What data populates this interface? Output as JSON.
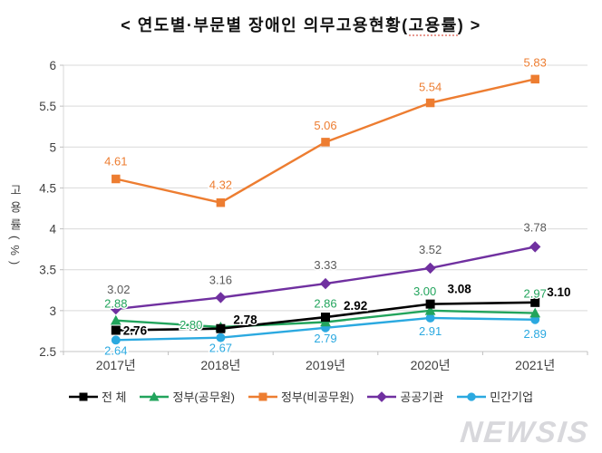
{
  "title": {
    "prefix": "< 연도별·부문별 장애인 의무고용현황(",
    "highlight": "고용률",
    "suffix": ") >"
  },
  "watermark": "NEWSIS",
  "colors": {
    "grid": "#D9D9D9",
    "axis": "#C6C6C6",
    "tick": "#BFBFBF",
    "axis_text": "#404040"
  },
  "chart_data": {
    "type": "line",
    "title": "< 연도별·부문별 장애인 의무고용현황(고용률) >",
    "categories": [
      "2017년",
      "2018년",
      "2019년",
      "2020년",
      "2021년"
    ],
    "xlabel": "",
    "ylabel": "고용률(%)",
    "ylim": [
      2.5,
      6
    ],
    "yticks": [
      2.5,
      3,
      3.5,
      4,
      4.5,
      5,
      5.5,
      6
    ],
    "grid": true,
    "legend_position": "bottom",
    "series": [
      {
        "key": "total",
        "name": "전 체",
        "color": "#000000",
        "marker": "square",
        "label_color": "#000000",
        "label_bold": true,
        "z": 5,
        "values": [
          2.76,
          2.78,
          2.92,
          3.08,
          3.1
        ],
        "label_offsets": [
          [
            8,
            5,
            "start"
          ],
          [
            14,
            -5,
            "start"
          ],
          [
            20,
            -8,
            "start"
          ],
          [
            32,
            -12,
            "middle"
          ],
          [
            13,
            -7,
            "start"
          ]
        ]
      },
      {
        "key": "government-civil-servants",
        "name": "정부(공무원)",
        "color": "#22A45C",
        "marker": "triangle",
        "label_color": "#22A45C",
        "label_bold": false,
        "z": 4,
        "values": [
          2.88,
          2.8,
          2.86,
          3.0,
          2.97
        ],
        "label_offsets": [
          [
            0,
            -14,
            "middle"
          ],
          [
            -20,
            2,
            "end"
          ],
          [
            0,
            -16,
            "middle"
          ],
          [
            -6,
            -17,
            "middle"
          ],
          [
            0,
            -17,
            "middle"
          ]
        ]
      },
      {
        "key": "government-non-civil-servants",
        "name": "정부(비공무원)",
        "color": "#ED7D31",
        "marker": "square",
        "label_color": "#ED7D31",
        "label_bold": false,
        "z": 1,
        "values": [
          4.61,
          4.32,
          5.06,
          5.54,
          5.83
        ],
        "label_offsets": [
          [
            0,
            -15,
            "middle"
          ],
          [
            0,
            -15,
            "middle"
          ],
          [
            0,
            -14,
            "middle"
          ],
          [
            0,
            -13,
            "middle"
          ],
          [
            0,
            -14,
            "middle"
          ]
        ]
      },
      {
        "key": "public-institutions",
        "name": "공공기관",
        "color": "#7030A0",
        "marker": "diamond",
        "label_color": "#595959",
        "label_bold": false,
        "z": 2,
        "values": [
          3.02,
          3.16,
          3.33,
          3.52,
          3.78
        ],
        "label_offsets": [
          [
            3,
            -17,
            "middle"
          ],
          [
            0,
            -15,
            "middle"
          ],
          [
            0,
            -16,
            "middle"
          ],
          [
            0,
            -16,
            "middle"
          ],
          [
            0,
            -17,
            "middle"
          ]
        ]
      },
      {
        "key": "private-companies",
        "name": "민간기업",
        "color": "#2BA9E0",
        "marker": "circle",
        "label_color": "#2BA9E0",
        "label_bold": false,
        "z": 3,
        "values": [
          2.64,
          2.67,
          2.79,
          2.91,
          2.89
        ],
        "label_offsets": [
          [
            0,
            16,
            "middle"
          ],
          [
            0,
            16,
            "middle"
          ],
          [
            0,
            16,
            "middle"
          ],
          [
            0,
            19,
            "middle"
          ],
          [
            0,
            20,
            "middle"
          ]
        ]
      }
    ]
  }
}
